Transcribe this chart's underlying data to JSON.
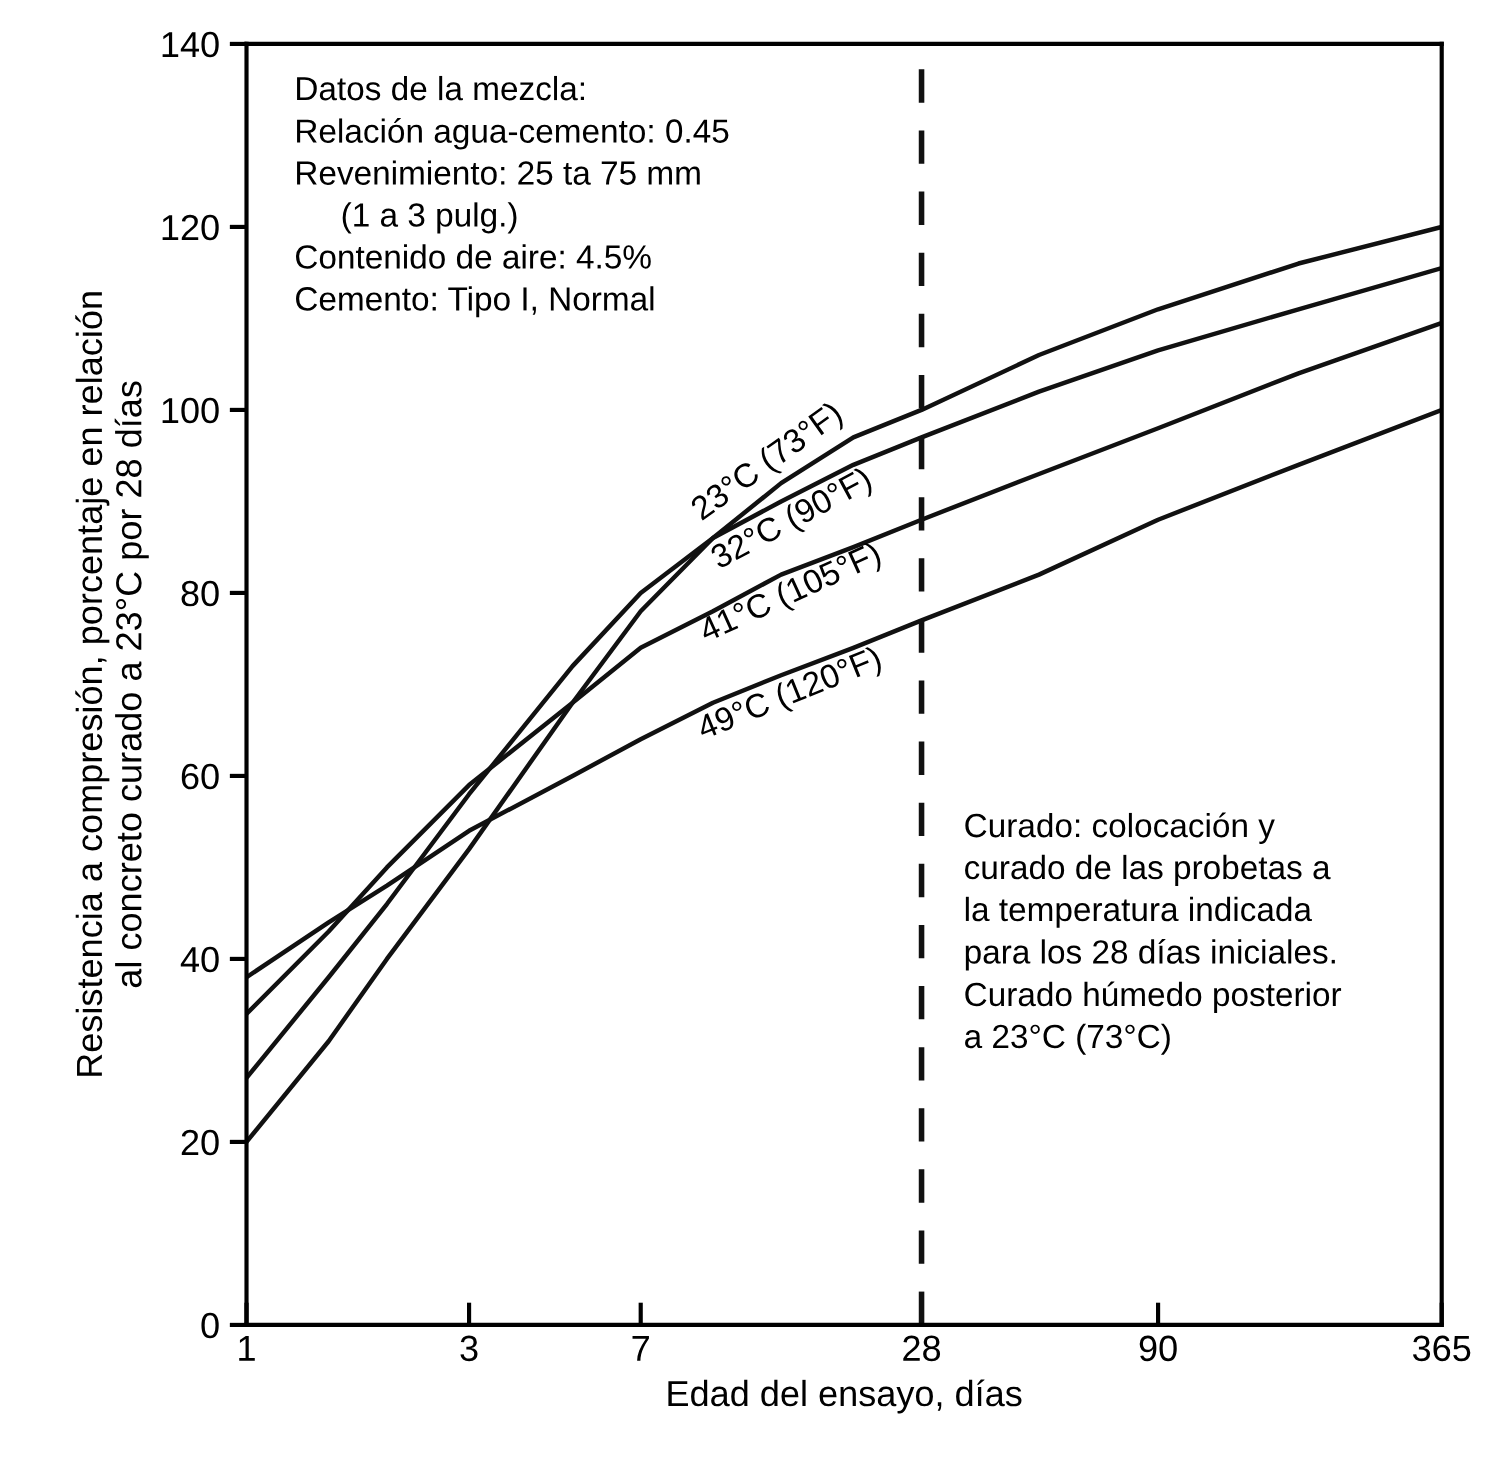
{
  "chart_data": {
    "type": "line",
    "xlabel": "Edad del ensayo, días",
    "ylabel": "Resistencia a compresión, porcentaje en relación\nal concreto curado a 23°C por 28 días",
    "log": "x",
    "xlim": [
      1,
      365
    ],
    "xticks": [
      1,
      3,
      7,
      28,
      90,
      365
    ],
    "ylim": [
      0,
      140
    ],
    "yticks": [
      0,
      20,
      40,
      60,
      80,
      100,
      120,
      140
    ],
    "grid": false,
    "legend": false,
    "marker": "none",
    "line_style": "solid",
    "x": [
      1,
      1.5,
      2,
      3,
      5,
      7,
      10,
      14,
      20,
      28,
      50,
      90,
      180,
      365
    ],
    "series": [
      {
        "name": "23°C (73°F)",
        "color": "#111111",
        "values": [
          20,
          31,
          40,
          52,
          68,
          78,
          86,
          92,
          97,
          100,
          106,
          111,
          116,
          120
        ]
      },
      {
        "name": "32°C (90°F)",
        "color": "#111111",
        "values": [
          27,
          38,
          46,
          58,
          72,
          80,
          86,
          90,
          94,
          97,
          102,
          106.5,
          111,
          115.5
        ]
      },
      {
        "name": "41°C (105°F)",
        "color": "#111111",
        "values": [
          34,
          43,
          50,
          59,
          68,
          74,
          78,
          82,
          85,
          88,
          93,
          98,
          104,
          109.5
        ]
      },
      {
        "name": "49°C (120°F)",
        "color": "#111111",
        "values": [
          38,
          44,
          48,
          54,
          60,
          64,
          68,
          71,
          74,
          77,
          82,
          88,
          94,
          100
        ]
      }
    ],
    "ref_lines": [
      {
        "axis": "x",
        "value": 28,
        "label": null,
        "color": "#111111",
        "line_style": "dashed"
      }
    ],
    "annotations": [
      "Datos de la mezcla:\nRelación agua-cemento: 0.45\nRevenimiento: 25 ta 75 mm\n     (1 a 3 pulg.)\nContenido de aire: 4.5%\nCemento: Tipo I, Normal",
      "Curado: colocación y\ncurado de las probetas a\nla temperatura indicada\npara los 28 días iniciales.\nCurado húmedo posterior\na 23°C (73°C)"
    ]
  }
}
